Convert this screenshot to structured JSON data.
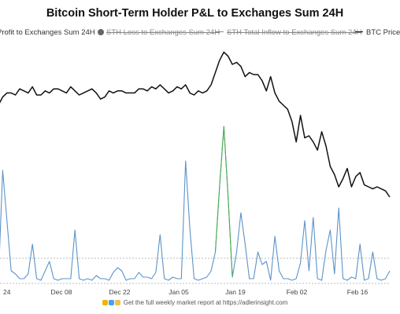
{
  "title": "Bitcoin Short-Term Holder P&L to Exchanges Sum 24H",
  "legend": {
    "profit": "Profit to Exchanges Sum 24H",
    "loss": "STH Loss to Exchanges Sum 24H",
    "inflow": "STH Total Inflow to Exchanges Sum 24H",
    "btc": "BTC Price"
  },
  "footer": "Get the full weekly market report at https://adlerinsight.com",
  "colors": {
    "profit": "#5b93c9",
    "profit_peak": "#4caf50",
    "price": "#111111"
  },
  "chart_data": {
    "type": "line",
    "x_ticks": [
      "24",
      "Dec 08",
      "Dec 22",
      "Jan 05",
      "Jan 19",
      "Feb 02",
      "Feb 16"
    ],
    "y_axis": "hidden",
    "grid": false,
    "legend_position": "top",
    "x": [
      "Nov 24",
      "Nov 25",
      "Nov 26",
      "Nov 27",
      "Nov 28",
      "Nov 29",
      "Nov 30",
      "Dec 01",
      "Dec 02",
      "Dec 03",
      "Dec 04",
      "Dec 05",
      "Dec 06",
      "Dec 07",
      "Dec 08",
      "Dec 09",
      "Dec 10",
      "Dec 11",
      "Dec 12",
      "Dec 13",
      "Dec 14",
      "Dec 15",
      "Dec 16",
      "Dec 17",
      "Dec 18",
      "Dec 19",
      "Dec 20",
      "Dec 21",
      "Dec 22",
      "Dec 23",
      "Dec 24",
      "Dec 25",
      "Dec 26",
      "Dec 27",
      "Dec 28",
      "Dec 29",
      "Dec 30",
      "Dec 31",
      "Jan 01",
      "Jan 02",
      "Jan 03",
      "Jan 04",
      "Jan 05",
      "Jan 06",
      "Jan 07",
      "Jan 08",
      "Jan 09",
      "Jan 10",
      "Jan 11",
      "Jan 12",
      "Jan 13",
      "Jan 14",
      "Jan 15",
      "Jan 16",
      "Jan 17",
      "Jan 18",
      "Jan 19",
      "Jan 20",
      "Jan 21",
      "Jan 22",
      "Jan 23",
      "Jan 24",
      "Jan 25",
      "Jan 26",
      "Jan 27",
      "Jan 28",
      "Jan 29",
      "Jan 30",
      "Jan 31",
      "Feb 01",
      "Feb 02",
      "Feb 03",
      "Feb 04",
      "Feb 05",
      "Feb 06",
      "Feb 07",
      "Feb 08",
      "Feb 09",
      "Feb 10",
      "Feb 11",
      "Feb 12",
      "Feb 13",
      "Feb 14",
      "Feb 15",
      "Feb 16",
      "Feb 17",
      "Feb 18",
      "Feb 19",
      "Feb 20",
      "Feb 21",
      "Feb 22",
      "Feb 23",
      "Feb 24"
    ],
    "series": [
      {
        "name": "BTC Price",
        "values": [
          80,
          84,
          86,
          86,
          85,
          88,
          87,
          86,
          89,
          85,
          85,
          87,
          86,
          88,
          88,
          87,
          86,
          89,
          87,
          85,
          86,
          87,
          88,
          86,
          83,
          84,
          87,
          86,
          87,
          87,
          86,
          86,
          86,
          88,
          88,
          87,
          89,
          88,
          90,
          88,
          86,
          87,
          89,
          88,
          90,
          86,
          85,
          87,
          86,
          87,
          90,
          96,
          102,
          106,
          104,
          100,
          101,
          99,
          94,
          96,
          95,
          95,
          92,
          87,
          94,
          86,
          82,
          80,
          78,
          72,
          62,
          75,
          64,
          65,
          62,
          58,
          67,
          60,
          50,
          46,
          40,
          44,
          49,
          40,
          45,
          47,
          41,
          40,
          39,
          40,
          39,
          38,
          35
        ]
      },
      {
        "name": "Profit to Exchanges Sum 24H",
        "values": [
          2,
          72,
          40,
          8,
          6,
          3,
          3,
          6,
          25,
          3,
          2,
          8,
          14,
          3,
          2,
          3,
          3,
          3,
          34,
          3,
          2,
          3,
          2,
          5,
          3,
          3,
          2,
          7,
          10,
          8,
          2,
          3,
          3,
          7,
          4,
          4,
          3,
          7,
          31,
          3,
          2,
          4,
          3,
          3,
          78,
          35,
          3,
          2,
          3,
          4,
          8,
          20,
          62,
          100,
          55,
          4,
          20,
          45,
          25,
          3,
          3,
          20,
          12,
          14,
          2,
          30,
          8,
          3,
          3,
          2,
          3,
          13,
          40,
          8,
          42,
          3,
          2,
          21,
          34,
          6,
          48,
          3,
          2,
          4,
          3,
          25,
          2,
          3,
          20,
          3,
          2,
          3,
          8
        ]
      }
    ]
  }
}
